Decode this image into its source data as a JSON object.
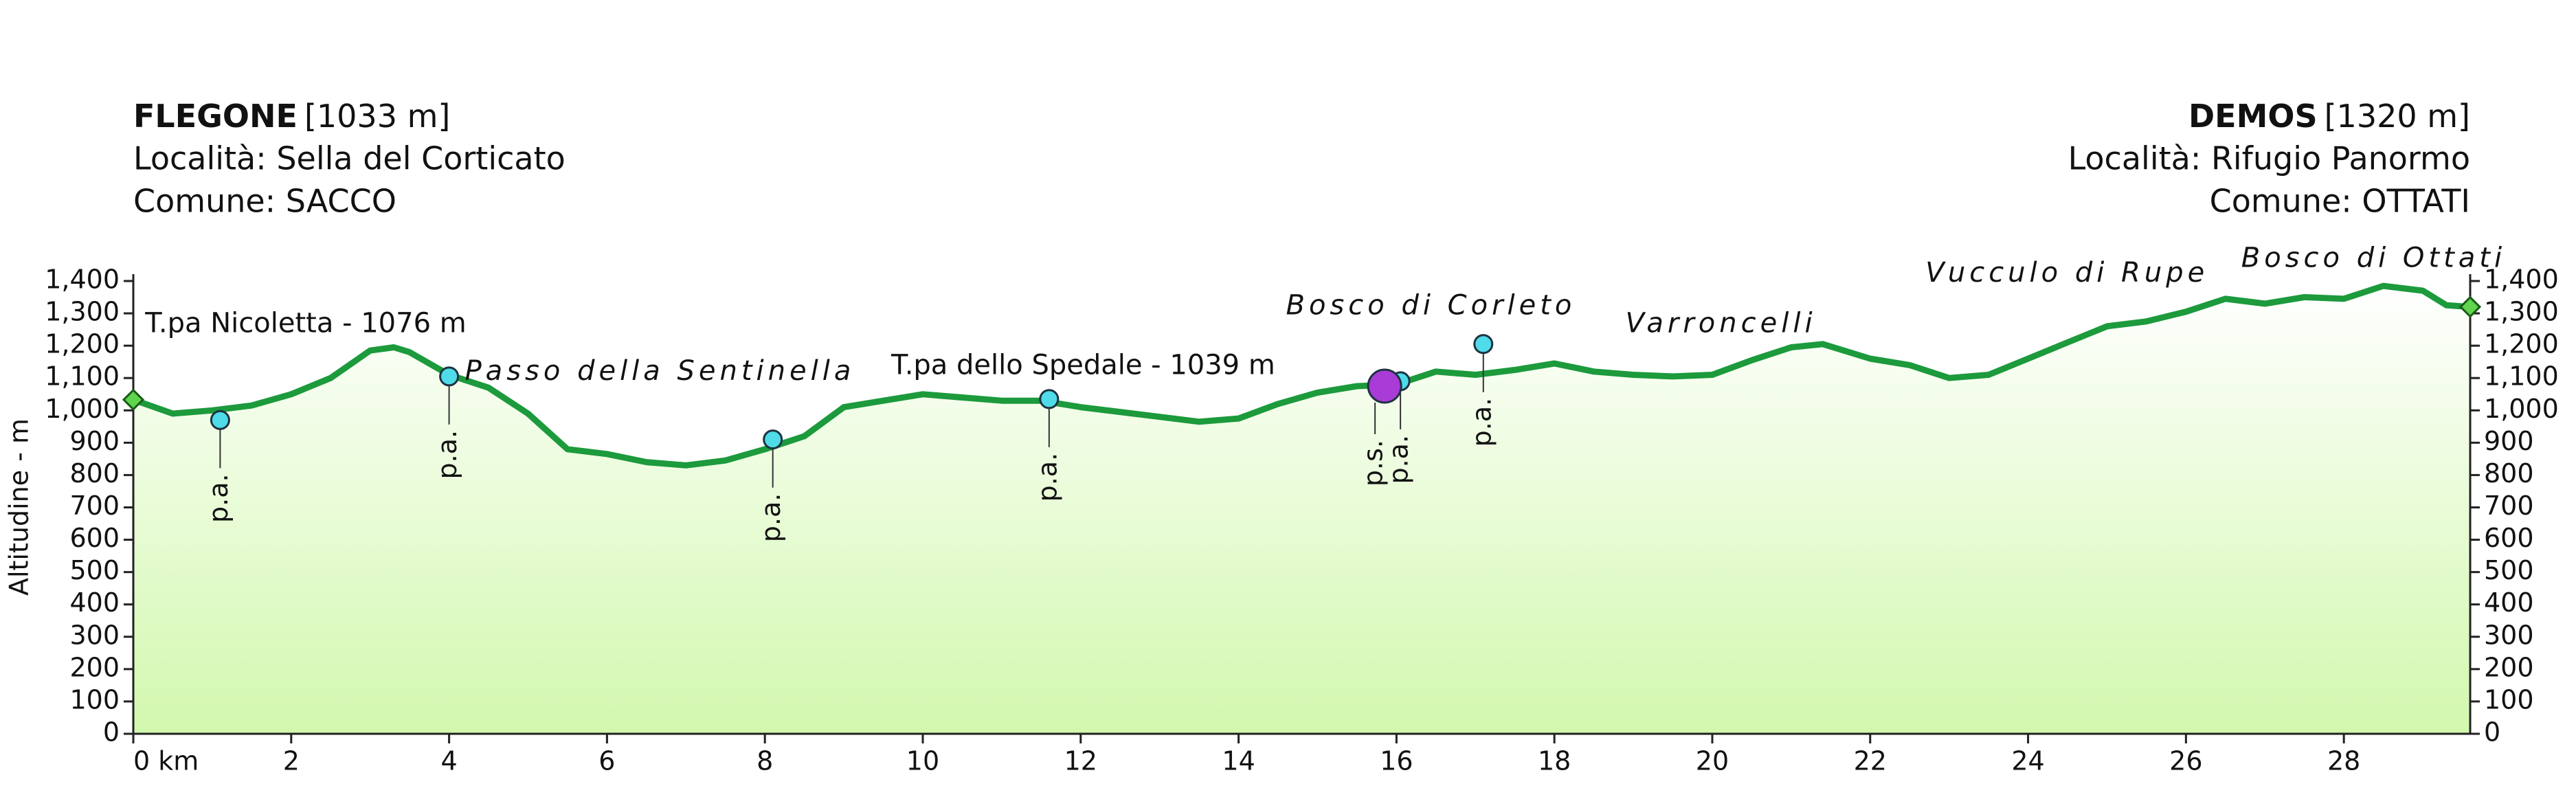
{
  "chart_data": {
    "type": "area",
    "start": {
      "name": "FLEGONE",
      "elevation": "[1033 m]",
      "locality": "Località: Sella del Corticato",
      "comune": "Comune: SACCO"
    },
    "end": {
      "name": "DEMOS",
      "elevation": "[1320 m]",
      "locality": "Località: Rifugio Panormo",
      "comune": "Comune: OTTATI"
    },
    "y_label": "Altitudine - m",
    "color": "#1c9a3c",
    "fill_color": "#d2f8ae",
    "marker_color": "#4fdbe8",
    "ps_color": "#a93bd6",
    "endpoint_color": "#5fd44c",
    "x": [
      0,
      0.5,
      1,
      1.5,
      2,
      2.5,
      3,
      3.3,
      3.5,
      4,
      4.5,
      5,
      5.5,
      6,
      6.5,
      7,
      7.5,
      8,
      8.5,
      9,
      9.5,
      10,
      10.5,
      11,
      11.5,
      12,
      12.5,
      13,
      13.5,
      14,
      14.5,
      15,
      15.5,
      16,
      16.5,
      17,
      17.5,
      18,
      18.5,
      19,
      19.5,
      20,
      20.5,
      21,
      21.4,
      22,
      22.5,
      23,
      23.5,
      24,
      24.5,
      25,
      25.5,
      26,
      26.5,
      27,
      27.5,
      28,
      28.5,
      29,
      29.3,
      29.6
    ],
    "values": [
      1033,
      990,
      1000,
      1015,
      1050,
      1100,
      1185,
      1195,
      1180,
      1110,
      1070,
      990,
      880,
      865,
      840,
      830,
      845,
      880,
      920,
      1010,
      1030,
      1050,
      1040,
      1030,
      1030,
      1010,
      995,
      980,
      965,
      975,
      1020,
      1055,
      1075,
      1080,
      1120,
      1110,
      1125,
      1145,
      1120,
      1110,
      1105,
      1110,
      1155,
      1195,
      1205,
      1160,
      1140,
      1100,
      1110,
      1160,
      1210,
      1260,
      1275,
      1305,
      1345,
      1330,
      1350,
      1345,
      1385,
      1370,
      1325,
      1320
    ],
    "xlim": [
      0,
      29.6
    ],
    "ylim": [
      0,
      1400
    ],
    "xticks": [
      {
        "value": 0,
        "label": "0 km"
      },
      2,
      4,
      6,
      8,
      10,
      12,
      14,
      16,
      18,
      20,
      22,
      24,
      26,
      28
    ],
    "yticks": [
      0,
      100,
      200,
      300,
      400,
      500,
      600,
      700,
      800,
      900,
      {
        "value": 1000,
        "label": "1,000"
      },
      {
        "value": 1100,
        "label": "1,100"
      },
      {
        "value": 1200,
        "label": "1,200"
      },
      {
        "value": 1300,
        "label": "1,300"
      },
      {
        "value": 1400,
        "label": "1,400"
      }
    ],
    "y2ticks": [
      0,
      100,
      200,
      300,
      400,
      500,
      600,
      700,
      800,
      900,
      {
        "value": 1000,
        "label": "1,000"
      },
      {
        "value": 1100,
        "label": "1,100"
      },
      {
        "value": 1200,
        "label": "1,200"
      },
      {
        "value": 1300,
        "label": "1,300"
      },
      {
        "value": 1400,
        "label": "1,400"
      }
    ],
    "points": [
      {
        "label": "p.a.",
        "x": 1.1,
        "y": 970
      },
      {
        "label": "p.a.",
        "x": 4.0,
        "y": 1105
      },
      {
        "label": "p.a.",
        "x": 8.1,
        "y": 910
      },
      {
        "label": "p.a.",
        "x": 11.6,
        "y": 1035
      },
      {
        "label": "p.a.",
        "x": 16.05,
        "y": 1090
      },
      {
        "label": "p.a.",
        "x": 17.1,
        "y": 1205
      },
      {
        "label": "p.s.",
        "x": 15.85,
        "y": 1075
      }
    ],
    "annotations": [
      {
        "text": "T.pa Nicoletta - 1076 m",
        "x": 0.15,
        "y": 1265,
        "italic": false
      },
      {
        "text": "Passo della Sentinella",
        "x": 4.2,
        "y": 1117,
        "italic": true
      },
      {
        "text": "T.pa dello Spedale - 1039 m",
        "x": 9.6,
        "y": 1135,
        "italic": false
      },
      {
        "text": "Bosco di Corleto",
        "x": 14.6,
        "y": 1320,
        "italic": true
      },
      {
        "text": "Varroncelli",
        "x": 18.9,
        "y": 1265,
        "italic": true
      },
      {
        "text": "Vucculo di Rupe",
        "x": 22.7,
        "y": 1421,
        "italic": true
      },
      {
        "text": "Bosco di Ottati",
        "x": 26.7,
        "y": 1467,
        "italic": true
      }
    ]
  }
}
